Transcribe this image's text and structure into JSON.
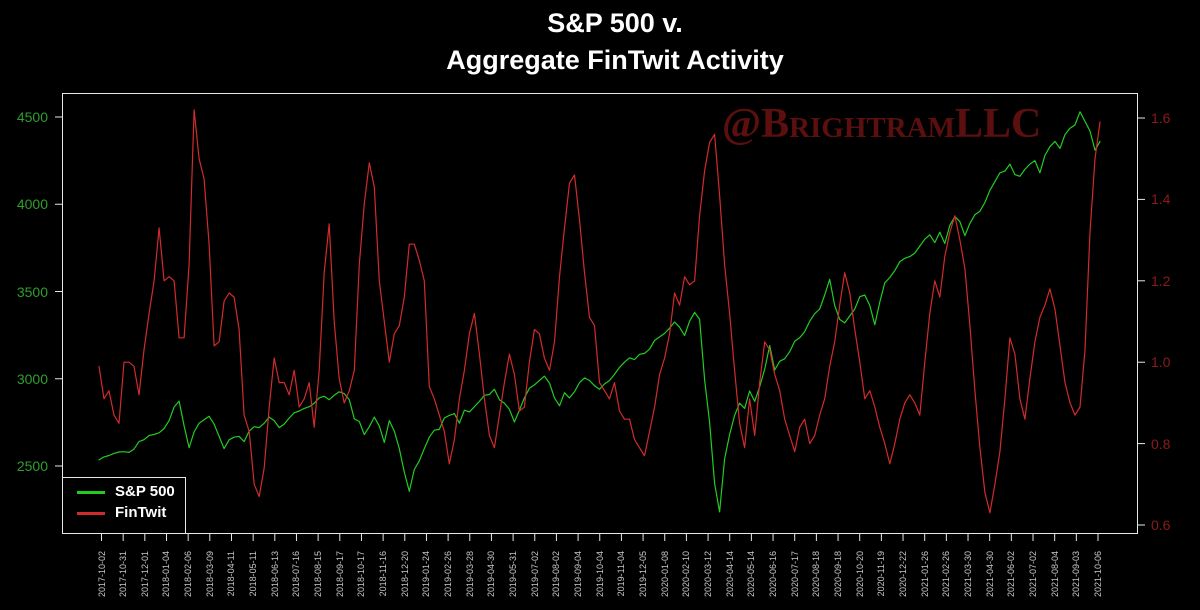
{
  "title": {
    "line1": "S&P 500 v.",
    "line2": "Aggregate FinTwit Activity"
  },
  "watermark": "@BrightramLLC",
  "colors": {
    "background": "#000000",
    "frame": "#e8e8e8",
    "sp500_line": "#22cc22",
    "fintwit_line": "#d22b2b",
    "left_axis_labels": "#2f9e2f",
    "right_axis_labels": "#8c1a1a",
    "x_axis_labels": "#c8c8c8",
    "watermark": "#5c0f0f"
  },
  "legend": {
    "items": [
      {
        "label": "S&P 500",
        "color": "#22cc22"
      },
      {
        "label": "FinTwit",
        "color": "#d22b2b"
      }
    ]
  },
  "chart_data": {
    "type": "line",
    "title": "S&P 500 v. Aggregate FinTwit Activity",
    "grid": false,
    "legend_position": "bottom-left",
    "x_tick_labels": [
      "2017-10-02",
      "2017-10-31",
      "2017-12-01",
      "2018-01-04",
      "2018-02-06",
      "2018-03-09",
      "2018-04-11",
      "2018-05-11",
      "2018-06-13",
      "2018-07-16",
      "2018-08-15",
      "2018-09-17",
      "2018-10-17",
      "2018-11-16",
      "2018-12-20",
      "2019-01-24",
      "2019-02-26",
      "2019-03-28",
      "2019-04-30",
      "2019-05-31",
      "2019-07-02",
      "2019-08-02",
      "2019-09-04",
      "2019-10-04",
      "2019-11-04",
      "2019-12-05",
      "2020-01-08",
      "2020-02-10",
      "2020-03-12",
      "2020-04-14",
      "2020-05-14",
      "2020-06-16",
      "2020-07-17",
      "2020-08-18",
      "2020-09-18",
      "2020-10-20",
      "2020-11-19",
      "2020-12-22",
      "2021-01-26",
      "2021-02-26",
      "2021-03-30",
      "2021-04-30",
      "2021-06-02",
      "2021-07-02",
      "2021-08-04",
      "2021-09-03",
      "2021-10-06"
    ],
    "left_axis": {
      "series": "S&P 500",
      "ticks": [
        2500,
        3000,
        3500,
        4000,
        4500
      ],
      "range": [
        2110,
        4640
      ]
    },
    "right_axis": {
      "series": "FinTwit",
      "ticks": [
        0.6,
        0.8,
        1.0,
        1.2,
        1.4,
        1.6
      ],
      "range": [
        0.58,
        1.66
      ]
    },
    "series": [
      {
        "name": "S&P 500",
        "axis": "left",
        "color": "#22cc22",
        "x_start": "2017-10-02",
        "x_end": "2021-10-06",
        "sampling": "uniform, ~weekly",
        "values": [
          2535,
          2552,
          2560,
          2572,
          2580,
          2582,
          2578,
          2597,
          2640,
          2651,
          2675,
          2681,
          2690,
          2715,
          2760,
          2838,
          2872,
          2730,
          2605,
          2695,
          2745,
          2765,
          2785,
          2740,
          2670,
          2600,
          2650,
          2665,
          2670,
          2640,
          2700,
          2725,
          2720,
          2745,
          2780,
          2760,
          2720,
          2740,
          2775,
          2805,
          2815,
          2830,
          2840,
          2860,
          2890,
          2900,
          2880,
          2905,
          2925,
          2915,
          2880,
          2770,
          2755,
          2680,
          2725,
          2780,
          2730,
          2635,
          2760,
          2700,
          2600,
          2465,
          2355,
          2480,
          2530,
          2600,
          2665,
          2705,
          2710,
          2775,
          2790,
          2800,
          2745,
          2820,
          2810,
          2840,
          2870,
          2905,
          2910,
          2940,
          2880,
          2860,
          2825,
          2752,
          2820,
          2890,
          2945,
          2965,
          2990,
          3015,
          2975,
          2890,
          2845,
          2920,
          2890,
          2925,
          2978,
          3005,
          2990,
          2960,
          2940,
          2970,
          2990,
          3025,
          3065,
          3095,
          3120,
          3110,
          3140,
          3145,
          3170,
          3220,
          3240,
          3260,
          3290,
          3325,
          3295,
          3248,
          3330,
          3380,
          3340,
          2995,
          2750,
          2400,
          2237,
          2540,
          2680,
          2790,
          2860,
          2830,
          2930,
          2870,
          2955,
          3055,
          3190,
          3050,
          3100,
          3115,
          3155,
          3215,
          3235,
          3270,
          3330,
          3373,
          3400,
          3480,
          3570,
          3420,
          3340,
          3320,
          3360,
          3400,
          3470,
          3480,
          3420,
          3310,
          3440,
          3550,
          3580,
          3620,
          3670,
          3690,
          3700,
          3720,
          3760,
          3800,
          3825,
          3780,
          3840,
          3775,
          3880,
          3930,
          3900,
          3820,
          3890,
          3940,
          3960,
          4010,
          4080,
          4130,
          4180,
          4190,
          4230,
          4170,
          4160,
          4200,
          4230,
          4250,
          4180,
          4280,
          4330,
          4360,
          4320,
          4400,
          4435,
          4455,
          4530,
          4475,
          4420,
          4310,
          4360
        ]
      },
      {
        "name": "FinTwit",
        "axis": "right",
        "color": "#d22b2b",
        "x_start": "2017-10-02",
        "x_end": "2021-10-06",
        "sampling": "uniform, ~weekly",
        "values": [
          0.99,
          0.91,
          0.93,
          0.87,
          0.85,
          1.0,
          1.0,
          0.99,
          0.92,
          1.03,
          1.12,
          1.2,
          1.33,
          1.2,
          1.21,
          1.2,
          1.06,
          1.06,
          1.24,
          1.62,
          1.5,
          1.45,
          1.29,
          1.04,
          1.05,
          1.15,
          1.17,
          1.16,
          1.08,
          0.87,
          0.83,
          0.7,
          0.67,
          0.74,
          0.89,
          1.01,
          0.95,
          0.95,
          0.92,
          0.98,
          0.89,
          0.91,
          0.95,
          0.84,
          0.98,
          1.22,
          1.34,
          1.1,
          0.96,
          0.9,
          0.93,
          0.98,
          1.24,
          1.39,
          1.49,
          1.43,
          1.2,
          1.1,
          1.0,
          1.07,
          1.09,
          1.16,
          1.29,
          1.29,
          1.25,
          1.2,
          0.94,
          0.91,
          0.87,
          0.83,
          0.75,
          0.81,
          0.91,
          0.98,
          1.07,
          1.12,
          1.02,
          0.91,
          0.82,
          0.79,
          0.87,
          0.95,
          1.02,
          0.97,
          0.88,
          0.89,
          1.0,
          1.08,
          1.07,
          1.01,
          0.98,
          1.05,
          1.21,
          1.33,
          1.44,
          1.46,
          1.35,
          1.22,
          1.11,
          1.09,
          0.95,
          0.93,
          0.91,
          0.95,
          0.88,
          0.86,
          0.86,
          0.81,
          0.79,
          0.77,
          0.83,
          0.89,
          0.97,
          1.01,
          1.07,
          1.17,
          1.14,
          1.21,
          1.19,
          1.2,
          1.36,
          1.47,
          1.54,
          1.56,
          1.41,
          1.24,
          1.12,
          0.98,
          0.85,
          0.79,
          0.91,
          0.82,
          0.95,
          1.05,
          1.03,
          0.97,
          0.93,
          0.86,
          0.82,
          0.78,
          0.84,
          0.86,
          0.8,
          0.82,
          0.87,
          0.91,
          0.99,
          1.05,
          1.14,
          1.22,
          1.17,
          1.08,
          1.0,
          0.91,
          0.93,
          0.89,
          0.84,
          0.8,
          0.75,
          0.8,
          0.86,
          0.9,
          0.92,
          0.9,
          0.87,
          1.0,
          1.12,
          1.2,
          1.16,
          1.26,
          1.32,
          1.36,
          1.3,
          1.23,
          1.09,
          0.93,
          0.79,
          0.68,
          0.63,
          0.7,
          0.78,
          0.91,
          1.06,
          1.02,
          0.91,
          0.86,
          0.96,
          1.05,
          1.11,
          1.14,
          1.18,
          1.13,
          1.04,
          0.95,
          0.9,
          0.87,
          0.89,
          1.03,
          1.32,
          1.5,
          1.59
        ]
      }
    ]
  }
}
